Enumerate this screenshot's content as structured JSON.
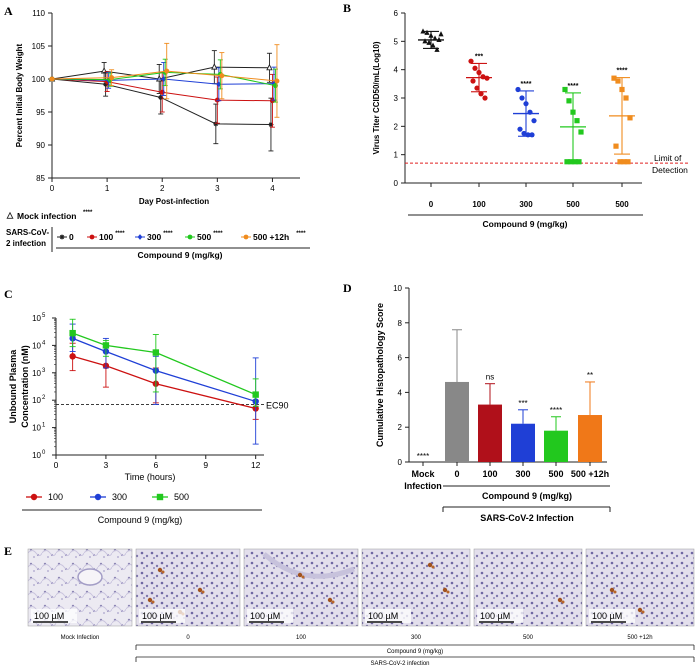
{
  "panels": [
    "A",
    "B",
    "C",
    "D",
    "E"
  ],
  "chart_data": [
    {
      "id": "A",
      "type": "line",
      "title": "",
      "xlabel": "Day Post-infection",
      "ylabel": "Percent Initial Body Weight",
      "xlim": [
        0,
        4.5
      ],
      "ylim": [
        85,
        110
      ],
      "xticks": [
        0,
        1,
        2,
        3,
        4
      ],
      "yticks": [
        85,
        90,
        95,
        100,
        105,
        110
      ],
      "x": [
        0,
        1,
        2,
        3,
        4
      ],
      "series": [
        {
          "name": "Mock infection",
          "sig": "****",
          "color": "#222222",
          "marker": "triangle-open",
          "values": [
            100,
            101.2,
            100,
            101.8,
            101.7
          ],
          "err": [
            0,
            1.3,
            2.2,
            2.5,
            2.2
          ]
        },
        {
          "name": "0",
          "sig": "",
          "color": "#222222",
          "marker": "star",
          "values": [
            100,
            99.2,
            97.2,
            93.2,
            93.1
          ],
          "err": [
            0,
            1.8,
            2.5,
            3.0,
            4.0
          ]
        },
        {
          "name": "100",
          "sig": "****",
          "color": "#cc1111",
          "marker": "circle",
          "values": [
            100,
            99.6,
            98.0,
            96.8,
            96.7
          ],
          "err": [
            0,
            1.5,
            3.0,
            3.5,
            4.0
          ]
        },
        {
          "name": "300",
          "sig": "****",
          "color": "#1f3fd6",
          "marker": "diamond",
          "values": [
            100,
            99.8,
            100.0,
            99.2,
            99.3
          ],
          "err": [
            0,
            1.2,
            2.5,
            2.5,
            2.5
          ]
        },
        {
          "name": "500",
          "sig": "****",
          "color": "#22c81e",
          "marker": "circle",
          "values": [
            100,
            99.9,
            101.0,
            100.7,
            99.0
          ],
          "err": [
            0,
            1.0,
            2.0,
            2.2,
            2.5
          ]
        },
        {
          "name": "500 +12h",
          "sig": "****",
          "color": "#f08c1e",
          "marker": "circle",
          "values": [
            100,
            100.2,
            101.2,
            100.5,
            99.7
          ],
          "err": [
            0,
            1.2,
            4.2,
            3.5,
            5.5
          ]
        }
      ],
      "legend": {
        "mock_label": "Mock infection",
        "mock_sig": "****",
        "group_label_1": "SARS-CoV-",
        "group_label_2": "2 infection",
        "compound_label": "Compound 9 (mg/kg)"
      }
    },
    {
      "id": "B",
      "type": "scatter",
      "xlabel": "Compound 9 (mg/kg)",
      "ylabel": "Virus Titer CCID50/mL(Log10)",
      "ylim": [
        0,
        6
      ],
      "yticks": [
        0,
        1,
        2,
        3,
        4,
        5,
        6
      ],
      "categories": [
        "0",
        "100",
        "300",
        "500",
        "500"
      ],
      "detection_limit": 0.7,
      "detection_label_1": "Limit of",
      "detection_label_2": "Detection",
      "groups": [
        {
          "label": "0",
          "color": "#111111",
          "marker": "triangle",
          "sig": "",
          "mean": 5.05,
          "sd": 0.3,
          "points": [
            5.35,
            5.3,
            5.2,
            5.1,
            5.05,
            5.0,
            4.95,
            4.85,
            4.7,
            5.25
          ]
        },
        {
          "label": "100",
          "color": "#cc1111",
          "marker": "circle",
          "sig": "***",
          "mean": 3.72,
          "sd": 0.5,
          "points": [
            4.3,
            4.05,
            3.9,
            3.75,
            3.7,
            3.6,
            3.35,
            3.15,
            3.0
          ]
        },
        {
          "label": "300",
          "color": "#1f3fd6",
          "marker": "circle",
          "sig": "****",
          "mean": 2.45,
          "sd": 0.8,
          "points": [
            3.3,
            3.0,
            2.8,
            2.5,
            2.2,
            1.9,
            1.75,
            1.7,
            1.7
          ]
        },
        {
          "label": "500",
          "color": "#22c81e",
          "marker": "square",
          "sig": "****",
          "mean": 1.98,
          "sd": 1.2,
          "points": [
            3.3,
            2.9,
            2.5,
            2.2,
            1.8,
            0.75,
            0.75,
            0.75,
            0.75
          ]
        },
        {
          "label": "500",
          "color": "#f08c1e",
          "marker": "square",
          "sig": "****",
          "mean": 2.37,
          "sd": 1.35,
          "points": [
            3.7,
            3.6,
            3.3,
            3.0,
            2.3,
            1.3,
            0.75,
            0.75,
            0.75
          ]
        }
      ]
    },
    {
      "id": "C",
      "type": "line",
      "xlabel": "Time (hours)",
      "ylabel_1": "Unbound Plasma",
      "ylabel_2": "Concentration (nM)",
      "yscale": "log",
      "ylim_log10": [
        0,
        5
      ],
      "xlim": [
        0,
        12.5
      ],
      "xticks": [
        0,
        3,
        6,
        9,
        12
      ],
      "ec90": 70,
      "ec90_label": "EC90",
      "compound_label": "Compound 9 (mg/kg)",
      "x": [
        1,
        3,
        6,
        12
      ],
      "series": [
        {
          "name": "100",
          "color": "#cc1111",
          "marker": "circle",
          "values": [
            4000,
            1800,
            400,
            50
          ],
          "lo": [
            1200,
            300,
            80,
            20
          ],
          "hi": [
            12000,
            8000,
            1500,
            100
          ]
        },
        {
          "name": "300",
          "color": "#1f3fd6",
          "marker": "circle",
          "values": [
            18000,
            6000,
            1200,
            90
          ],
          "lo": [
            6000,
            1500,
            70,
            2.5
          ],
          "hi": [
            60000,
            18000,
            4000,
            3500
          ]
        },
        {
          "name": "500",
          "color": "#22c81e",
          "marker": "square",
          "values": [
            28000,
            10000,
            5500,
            160
          ],
          "lo": [
            9000,
            4000,
            200,
            60
          ],
          "hi": [
            90000,
            15000,
            25000,
            600
          ]
        }
      ]
    },
    {
      "id": "D",
      "type": "bar",
      "ylabel": "Cumulative Histopathology Score",
      "ylim": [
        0,
        10
      ],
      "yticks": [
        0,
        2,
        4,
        6,
        8,
        10
      ],
      "categories": [
        "Mock Infection",
        "0",
        "100",
        "300",
        "500",
        "500 +12h"
      ],
      "values": [
        0,
        4.6,
        3.3,
        2.2,
        1.8,
        2.7
      ],
      "sd": [
        0,
        3.0,
        1.2,
        0.8,
        0.8,
        1.9
      ],
      "sig": [
        "****",
        "",
        "ns",
        "***",
        "****",
        "**"
      ],
      "colors": [
        "#ffffff",
        "#888888",
        "#b0101a",
        "#1f3fd6",
        "#22c81e",
        "#f07818"
      ],
      "compound_label": "Compound 9 (mg/kg)",
      "infection_label": "SARS-CoV-2 Infection"
    }
  ],
  "panel_e": {
    "scale_bar": "100 µM",
    "labels": [
      "Mock Infection",
      "0",
      "100",
      "300",
      "500",
      "500 +12h"
    ],
    "compound_label": "Compound 9 (mg/kg)",
    "infection_label": "SARS-CoV-2 infection"
  }
}
